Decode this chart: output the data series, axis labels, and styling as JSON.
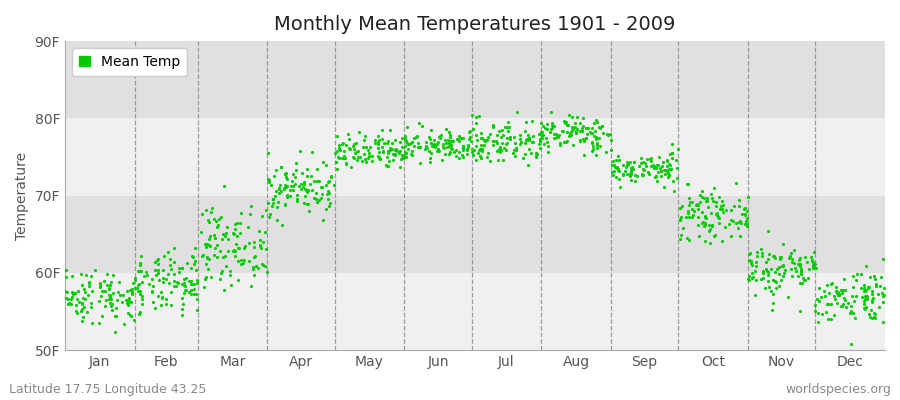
{
  "title": "Monthly Mean Temperatures 1901 - 2009",
  "ylabel": "Temperature",
  "xlabel_labels": [
    "Jan",
    "Feb",
    "Mar",
    "Apr",
    "May",
    "Jun",
    "Jul",
    "Aug",
    "Sep",
    "Oct",
    "Nov",
    "Dec"
  ],
  "ylim": [
    50,
    90
  ],
  "yticks": [
    50,
    60,
    70,
    80,
    90
  ],
  "ytick_labels": [
    "50F",
    "60F",
    "70F",
    "80F",
    "90F"
  ],
  "dot_color": "#00CC00",
  "background_color": "#ffffff",
  "plot_bg_light": "#f0f0f0",
  "plot_bg_dark": "#e0e0e0",
  "subtitle_left": "Latitude 17.75 Longitude 43.25",
  "subtitle_right": "worldspecies.org",
  "legend_label": "Mean Temp",
  "n_years": 109,
  "monthly_means": [
    57.0,
    58.5,
    63.5,
    71.0,
    75.5,
    76.5,
    77.0,
    78.0,
    73.5,
    67.5,
    60.5,
    57.0
  ],
  "monthly_stds": [
    1.8,
    2.0,
    2.5,
    1.8,
    1.2,
    1.0,
    1.5,
    1.2,
    1.0,
    1.5,
    1.8,
    1.8
  ],
  "title_fontsize": 14,
  "axis_label_fontsize": 10,
  "tick_fontsize": 10,
  "subtitle_fontsize": 9,
  "dot_size": 5
}
